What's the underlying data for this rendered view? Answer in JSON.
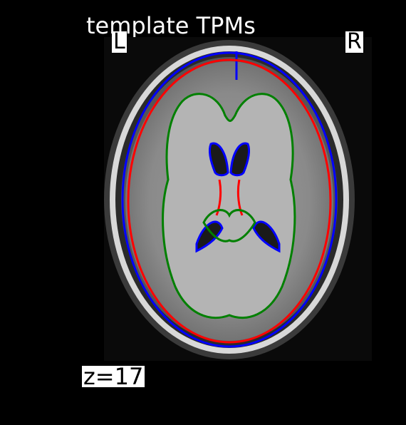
{
  "figure": {
    "title": "template TPMs",
    "left_label": "L",
    "right_label": "R",
    "slice_label": "z=17"
  },
  "contours": {
    "csf_color": "#0000ff",
    "gray_matter_color": "#ff0000",
    "white_matter_color": "#008000"
  },
  "background_color": "#000000"
}
